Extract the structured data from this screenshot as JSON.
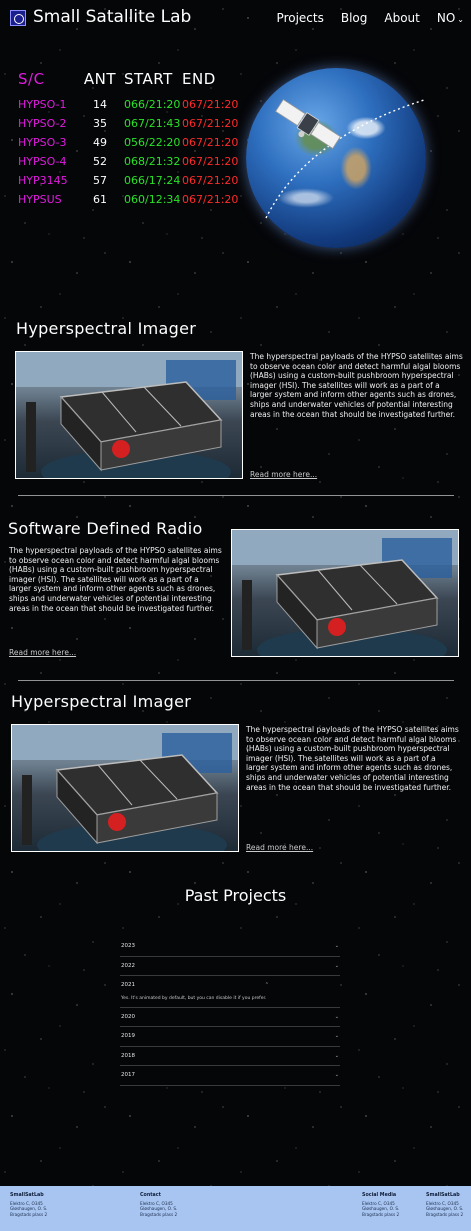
{
  "nav": {
    "title": "Small Satallite Lab",
    "links": [
      "Projects",
      "Blog",
      "About"
    ],
    "language": "NO"
  },
  "pass_table": {
    "headers": [
      "S/C",
      "ANT",
      "START",
      "END"
    ],
    "rows": [
      {
        "sc": "HYPSO-1",
        "ant": "14",
        "start": "066/21:20",
        "end": "067/21:20"
      },
      {
        "sc": "HYPSO-2",
        "ant": "35",
        "start": "067/21:43",
        "end": "067/21:20"
      },
      {
        "sc": "HYPSO-3",
        "ant": "49",
        "start": "056/22:20",
        "end": "067/21:20"
      },
      {
        "sc": "HYPSO-4",
        "ant": "52",
        "start": "068/21:32",
        "end": "067/21:20"
      },
      {
        "sc": "HYP3145",
        "ant": "57",
        "start": "066/17:24",
        "end": "067/21:20"
      },
      {
        "sc": "HYPSUS",
        "ant": "61",
        "start": "060/12:34",
        "end": "067/21:20"
      }
    ]
  },
  "colors": {
    "spacecraft": "#e01be0",
    "start": "#29e229",
    "end": "#ff2a2a",
    "footer": "#a8c5f2"
  },
  "sections": [
    {
      "title": "Hyperspectral Imager",
      "text": "The hyperspectral payloads of the HYPSO satellites aims to observe ocean color and detect harmful algal blooms (HABs) using a custom-built pushbroom hyperspectral imager (HSI). The satellites will work as a part of a larger system and inform other agents such as drones, ships and underwater vehicles of potential interesting areas in the ocean that should be investigated further.",
      "link": "Read more here..."
    },
    {
      "title": "Software Defined Radio",
      "text": "The hyperspectral payloads of the HYPSO satellites aims to observe ocean color and detect harmful algal blooms (HABs) using a custom-built pushbroom hyperspectral imager (HSI). The satellites will work as a part of a larger system and inform other agents such as drones, ships and underwater vehicles of potential interesting areas in the ocean that should be investigated further.",
      "link": "Read more here..."
    },
    {
      "title": "Hyperspectral Imager",
      "text": "The hyperspectral payloads of the HYPSO satellites aims to observe ocean color and detect harmful algal blooms (HABs) using a custom-built pushbroom hyperspectral imager (HSI). The satellites will work as a part of a larger system and inform other agents such as drones, ships and underwater vehicles of potential interesting areas in the ocean that should be investigated further.",
      "link": "Read more here..."
    }
  ],
  "past_projects": {
    "title": "Past Projects",
    "items": [
      {
        "year": "2023"
      },
      {
        "year": "2022"
      },
      {
        "year": "2021",
        "content": "Yes. It's animated by default, but you can disable it if you prefer."
      },
      {
        "year": "2020"
      },
      {
        "year": "2019"
      },
      {
        "year": "2018"
      },
      {
        "year": "2017"
      }
    ]
  },
  "footer": {
    "columns": [
      {
        "title": "SmallSatLab",
        "lines": [
          "Elektro C, O345",
          "Gløshaugen, O. S.",
          "Bragstads plass 2"
        ]
      },
      {
        "title": "Contact",
        "lines": [
          "Elektro C, O345",
          "Gløshaugen, O. S.",
          "Bragstads plass 2"
        ]
      },
      {
        "title": "Social Media",
        "lines": [
          "Elektro C, O345",
          "Gløshaugen, O. S.",
          "Bragstads plass 2"
        ]
      },
      {
        "title": "SmallSatLab",
        "lines": [
          "Elektro C, O345",
          "Gløshaugen, O. S.",
          "Bragstads plass 2"
        ]
      }
    ]
  }
}
